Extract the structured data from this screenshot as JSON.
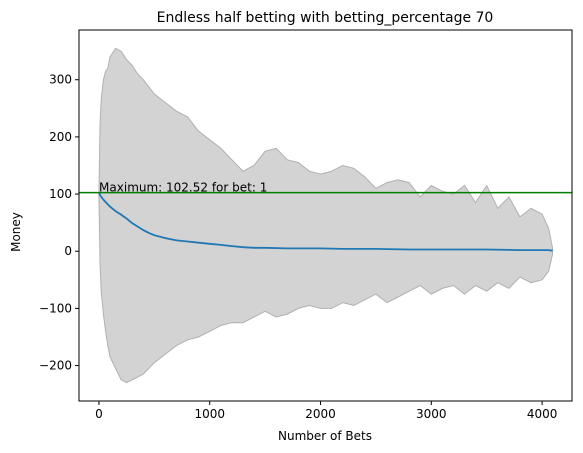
{
  "chart_data": {
    "type": "area",
    "title": "Endless half betting with betting_percentage 70",
    "xlabel": "Number of Bets",
    "ylabel": "Money",
    "xlim": [
      -180,
      4270
    ],
    "ylim": [
      -262,
      387
    ],
    "xticks": [
      0,
      1000,
      2000,
      3000,
      4000
    ],
    "xtick_labels": [
      "0",
      "1000",
      "2000",
      "3000",
      "4000"
    ],
    "yticks": [
      -200,
      -100,
      0,
      100,
      200,
      300
    ],
    "ytick_labels": [
      "−200",
      "−100",
      "0",
      "100",
      "200",
      "300"
    ],
    "grid": false,
    "band": {
      "name": "",
      "color": "#d3d3d3",
      "edge_color": "#b0b0b0",
      "x": [
        0,
        5,
        10,
        20,
        40,
        60,
        80,
        100,
        150,
        200,
        250,
        300,
        350,
        400,
        500,
        600,
        700,
        800,
        900,
        1000,
        1100,
        1200,
        1300,
        1400,
        1500,
        1600,
        1700,
        1800,
        1900,
        2000,
        2100,
        2200,
        2300,
        2400,
        2500,
        2600,
        2700,
        2800,
        2900,
        3000,
        3100,
        3200,
        3300,
        3400,
        3500,
        3600,
        3700,
        3800,
        3900,
        4000,
        4060,
        4095
      ],
      "upper": [
        102,
        160,
        220,
        265,
        300,
        315,
        320,
        340,
        355,
        350,
        335,
        325,
        310,
        300,
        275,
        260,
        245,
        235,
        210,
        195,
        180,
        160,
        140,
        150,
        175,
        180,
        160,
        155,
        140,
        135,
        140,
        150,
        145,
        130,
        110,
        120,
        125,
        120,
        95,
        115,
        105,
        100,
        115,
        85,
        115,
        75,
        95,
        60,
        75,
        65,
        40,
        5
      ],
      "lower": [
        98,
        40,
        -20,
        -70,
        -110,
        -140,
        -165,
        -185,
        -205,
        -225,
        -230,
        -225,
        -220,
        -215,
        -195,
        -180,
        -165,
        -155,
        -150,
        -140,
        -130,
        -125,
        -125,
        -115,
        -105,
        -115,
        -110,
        -100,
        -95,
        -100,
        -100,
        -90,
        -95,
        -85,
        -75,
        -90,
        -80,
        -70,
        -60,
        -75,
        -65,
        -60,
        -75,
        -60,
        -70,
        -55,
        -65,
        -45,
        -55,
        -50,
        -35,
        -5
      ]
    },
    "series": [
      {
        "name": "",
        "color": "#1f77b4",
        "x": [
          0,
          20,
          50,
          100,
          150,
          200,
          250,
          300,
          350,
          400,
          450,
          500,
          600,
          700,
          800,
          900,
          1000,
          1100,
          1200,
          1300,
          1400,
          1500,
          1700,
          2000,
          2200,
          2500,
          2800,
          3000,
          3200,
          3500,
          3800,
          4000,
          4060,
          4095
        ],
        "values": [
          102,
          95,
          88,
          78,
          70,
          64,
          57,
          49,
          43,
          37,
          32,
          28,
          23,
          19,
          17,
          15,
          13,
          11,
          9,
          7,
          6,
          6,
          5,
          5,
          4,
          4,
          3,
          3,
          3,
          3,
          2,
          2,
          2,
          1
        ]
      }
    ],
    "hline": {
      "y": 102.52,
      "color": "#008000"
    },
    "annotation": {
      "text": "Maximum: 102.52 for bet: 1",
      "x": 1,
      "y": 102.52
    }
  }
}
